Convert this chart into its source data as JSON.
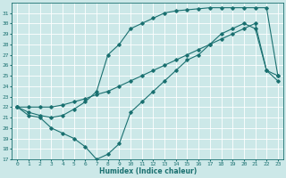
{
  "xlabel": "Humidex (Indice chaleur)",
  "bg_color": "#cce8e8",
  "line_color": "#1a7070",
  "grid_color": "#ffffff",
  "xlim": [
    -0.5,
    23.5
  ],
  "ylim": [
    17,
    32
  ],
  "yticks": [
    17,
    18,
    19,
    20,
    21,
    22,
    23,
    24,
    25,
    26,
    27,
    28,
    29,
    30,
    31
  ],
  "xticks": [
    0,
    1,
    2,
    3,
    4,
    5,
    6,
    7,
    8,
    9,
    10,
    11,
    12,
    13,
    14,
    15,
    16,
    17,
    18,
    19,
    20,
    21,
    22,
    23
  ],
  "line1_x": [
    0,
    1,
    2,
    3,
    4,
    5,
    6,
    7,
    8,
    9,
    10,
    11,
    12,
    13,
    14,
    15,
    16,
    17,
    18,
    19,
    20,
    21,
    22,
    23
  ],
  "line1_y": [
    22,
    21.2,
    21.0,
    20.0,
    19.5,
    19.0,
    18.2,
    17.0,
    17.5,
    18.5,
    21.5,
    22.5,
    23.5,
    24.5,
    25.5,
    26.5,
    27.0,
    28.0,
    29.0,
    29.5,
    30.0,
    29.5,
    25.5,
    24.5
  ],
  "line2_x": [
    0,
    1,
    2,
    3,
    4,
    5,
    6,
    7,
    8,
    9,
    10,
    11,
    12,
    13,
    14,
    15,
    16,
    17,
    18,
    19,
    20,
    21,
    22,
    23
  ],
  "line2_y": [
    22,
    21.5,
    21.2,
    21.0,
    21.2,
    21.8,
    22.5,
    23.5,
    27.0,
    28.0,
    29.5,
    30.0,
    30.5,
    31.0,
    31.2,
    31.3,
    31.4,
    31.5,
    31.5,
    31.5,
    31.5,
    31.5,
    31.5,
    25.0
  ],
  "line3_x": [
    0,
    1,
    2,
    3,
    4,
    5,
    6,
    7,
    8,
    9,
    10,
    11,
    12,
    13,
    14,
    15,
    16,
    17,
    18,
    19,
    20,
    21,
    22,
    23
  ],
  "line3_y": [
    22,
    22.0,
    22.0,
    22.0,
    22.2,
    22.5,
    22.8,
    23.2,
    23.5,
    24.0,
    24.5,
    25.0,
    25.5,
    26.0,
    26.5,
    27.0,
    27.5,
    28.0,
    28.5,
    29.0,
    29.5,
    30.0,
    25.5,
    25.0
  ]
}
